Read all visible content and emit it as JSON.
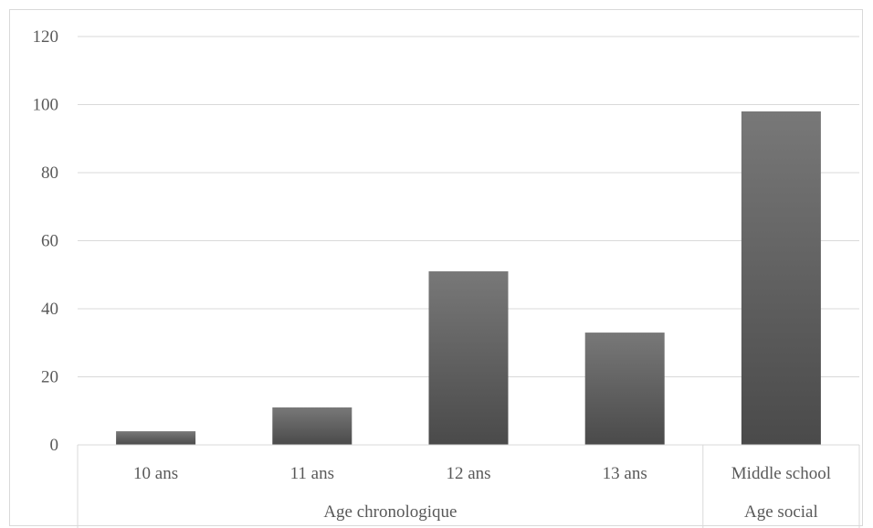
{
  "chart_data": {
    "type": "bar",
    "title": "",
    "xlabel": "",
    "ylabel": "",
    "ylim": [
      0,
      120
    ],
    "yticks": [
      "0",
      "20",
      "40",
      "60",
      "80",
      "100",
      "120"
    ],
    "grid": true,
    "legend": "none",
    "categories": [
      "10 ans",
      "11 ans",
      "12 ans",
      "13 ans",
      "Middle school"
    ],
    "values": [
      4,
      11,
      51,
      33,
      98
    ],
    "groups": [
      {
        "label": "Age chronologique",
        "count": 4
      },
      {
        "label": "Age social",
        "count": 1
      }
    ],
    "colors": {
      "bar_top": "#787878",
      "bar_bottom": "#4a4a4a",
      "grid": "#d9d9d9",
      "text": "#595959"
    }
  }
}
